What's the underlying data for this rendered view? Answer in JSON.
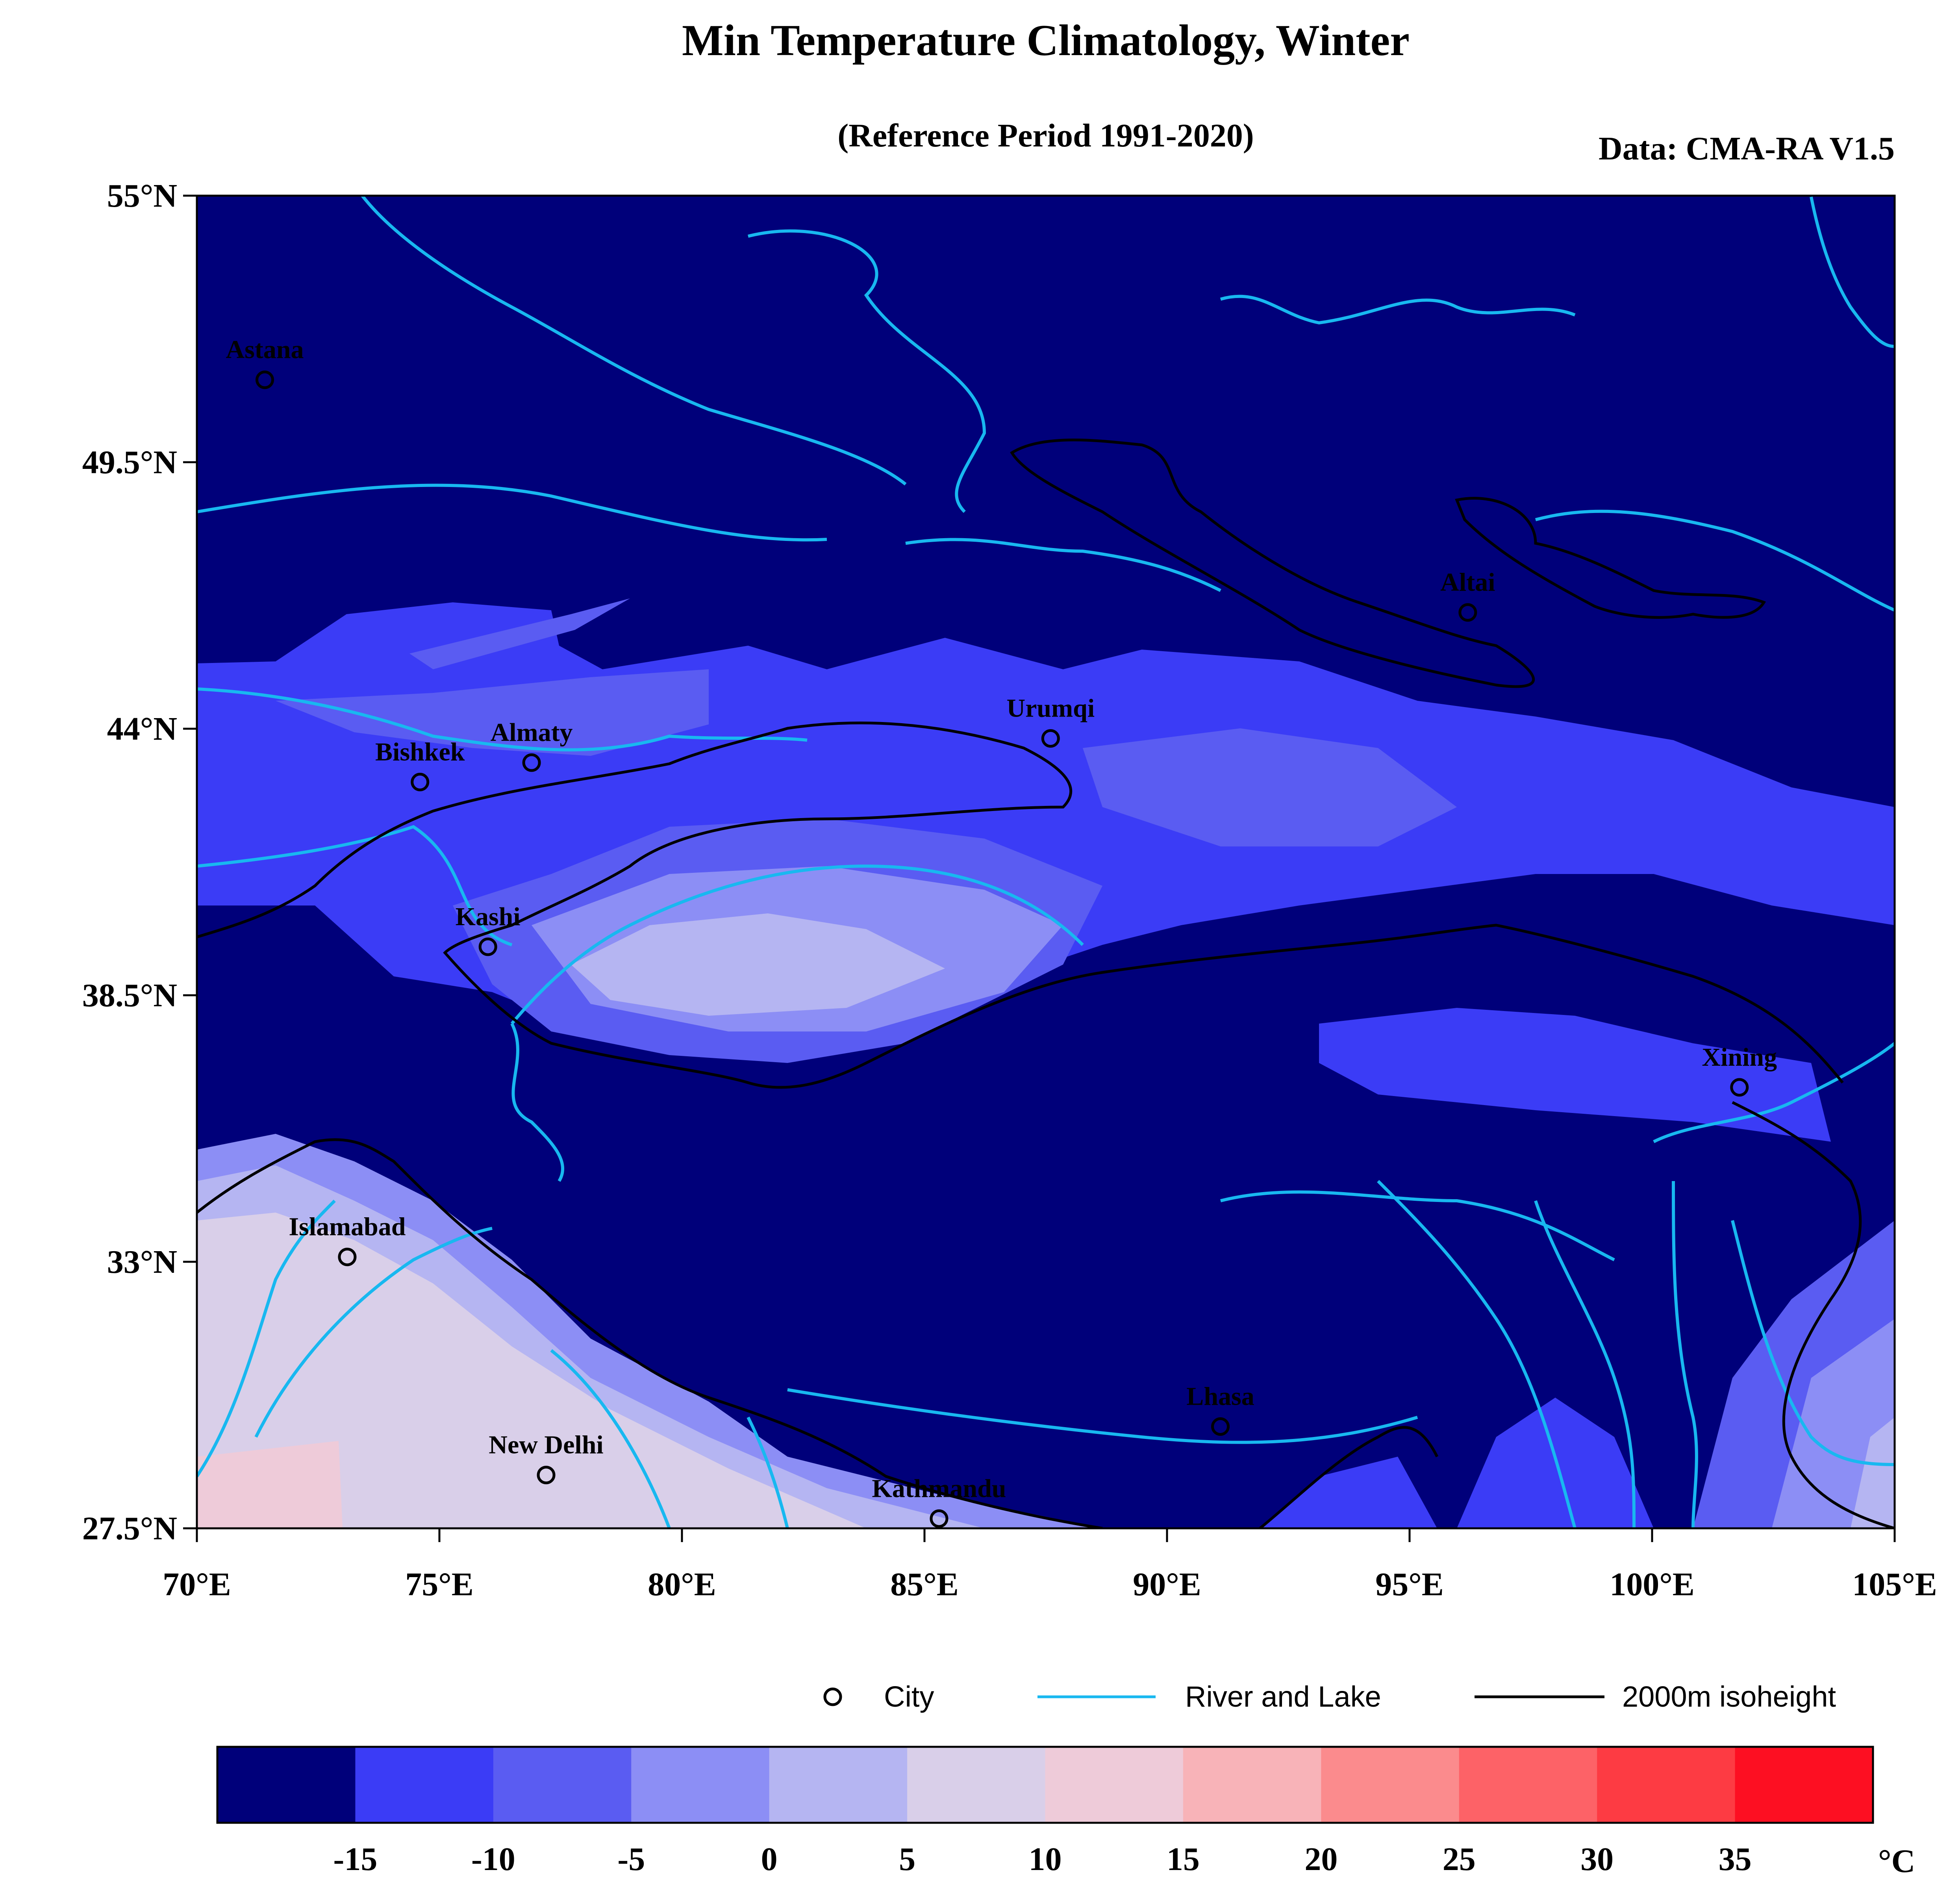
{
  "title": "Min Temperature Climatology, Winter",
  "subtitle": "(Reference Period 1991-2020)",
  "source": "Data: CMA-RA V1.5",
  "lat_ticks": [
    {
      "value": 55,
      "label": "55°N"
    },
    {
      "value": 49.5,
      "label": "49.5°N"
    },
    {
      "value": 44,
      "label": "44°N"
    },
    {
      "value": 38.5,
      "label": "38.5°N"
    },
    {
      "value": 33,
      "label": "33°N"
    },
    {
      "value": 27.5,
      "label": "27.5°N"
    }
  ],
  "lon_ticks": [
    {
      "value": 70,
      "label": "70°E"
    },
    {
      "value": 75,
      "label": "75°E"
    },
    {
      "value": 80,
      "label": "80°E"
    },
    {
      "value": 85,
      "label": "85°E"
    },
    {
      "value": 90,
      "label": "90°E"
    },
    {
      "value": 95,
      "label": "95°E"
    },
    {
      "value": 100,
      "label": "100°E"
    },
    {
      "value": 105,
      "label": "105°E"
    }
  ],
  "cities": [
    {
      "name": "Astana",
      "lon": 71.4,
      "lat": 51.2
    },
    {
      "name": "Bishkek",
      "lon": 74.6,
      "lat": 42.9
    },
    {
      "name": "Almaty",
      "lon": 76.9,
      "lat": 43.3
    },
    {
      "name": "Urumqi",
      "lon": 87.6,
      "lat": 43.8
    },
    {
      "name": "Altai",
      "lon": 96.2,
      "lat": 46.4
    },
    {
      "name": "Kashi",
      "lon": 76.0,
      "lat": 39.5
    },
    {
      "name": "Xining",
      "lon": 101.8,
      "lat": 36.6
    },
    {
      "name": "Islamabad",
      "lon": 73.1,
      "lat": 33.1
    },
    {
      "name": "Lhasa",
      "lon": 91.1,
      "lat": 29.6
    },
    {
      "name": "New Delhi",
      "lon": 77.2,
      "lat": 28.6
    },
    {
      "name": "Kathmandu",
      "lon": 85.3,
      "lat": 27.7
    }
  ],
  "legend": {
    "city": "City",
    "river": "River and Lake",
    "isoheight": "2000m isoheight"
  },
  "colorbar": {
    "unit": "°C",
    "colors": [
      "#00007a",
      "#3b3cf6",
      "#5a5cf2",
      "#8c8ef5",
      "#b5b5f2",
      "#d9cfe9",
      "#eecbd9",
      "#f8b3b8",
      "#fb8b8d",
      "#fd6267",
      "#fd3b43",
      "#fd0f22"
    ],
    "labels": [
      "-15",
      "-10",
      "-5",
      "0",
      "5",
      "10",
      "15",
      "20",
      "25",
      "30",
      "35"
    ]
  },
  "map_colors": {
    "river": "#18b8f0",
    "isoheight": "#000000"
  }
}
